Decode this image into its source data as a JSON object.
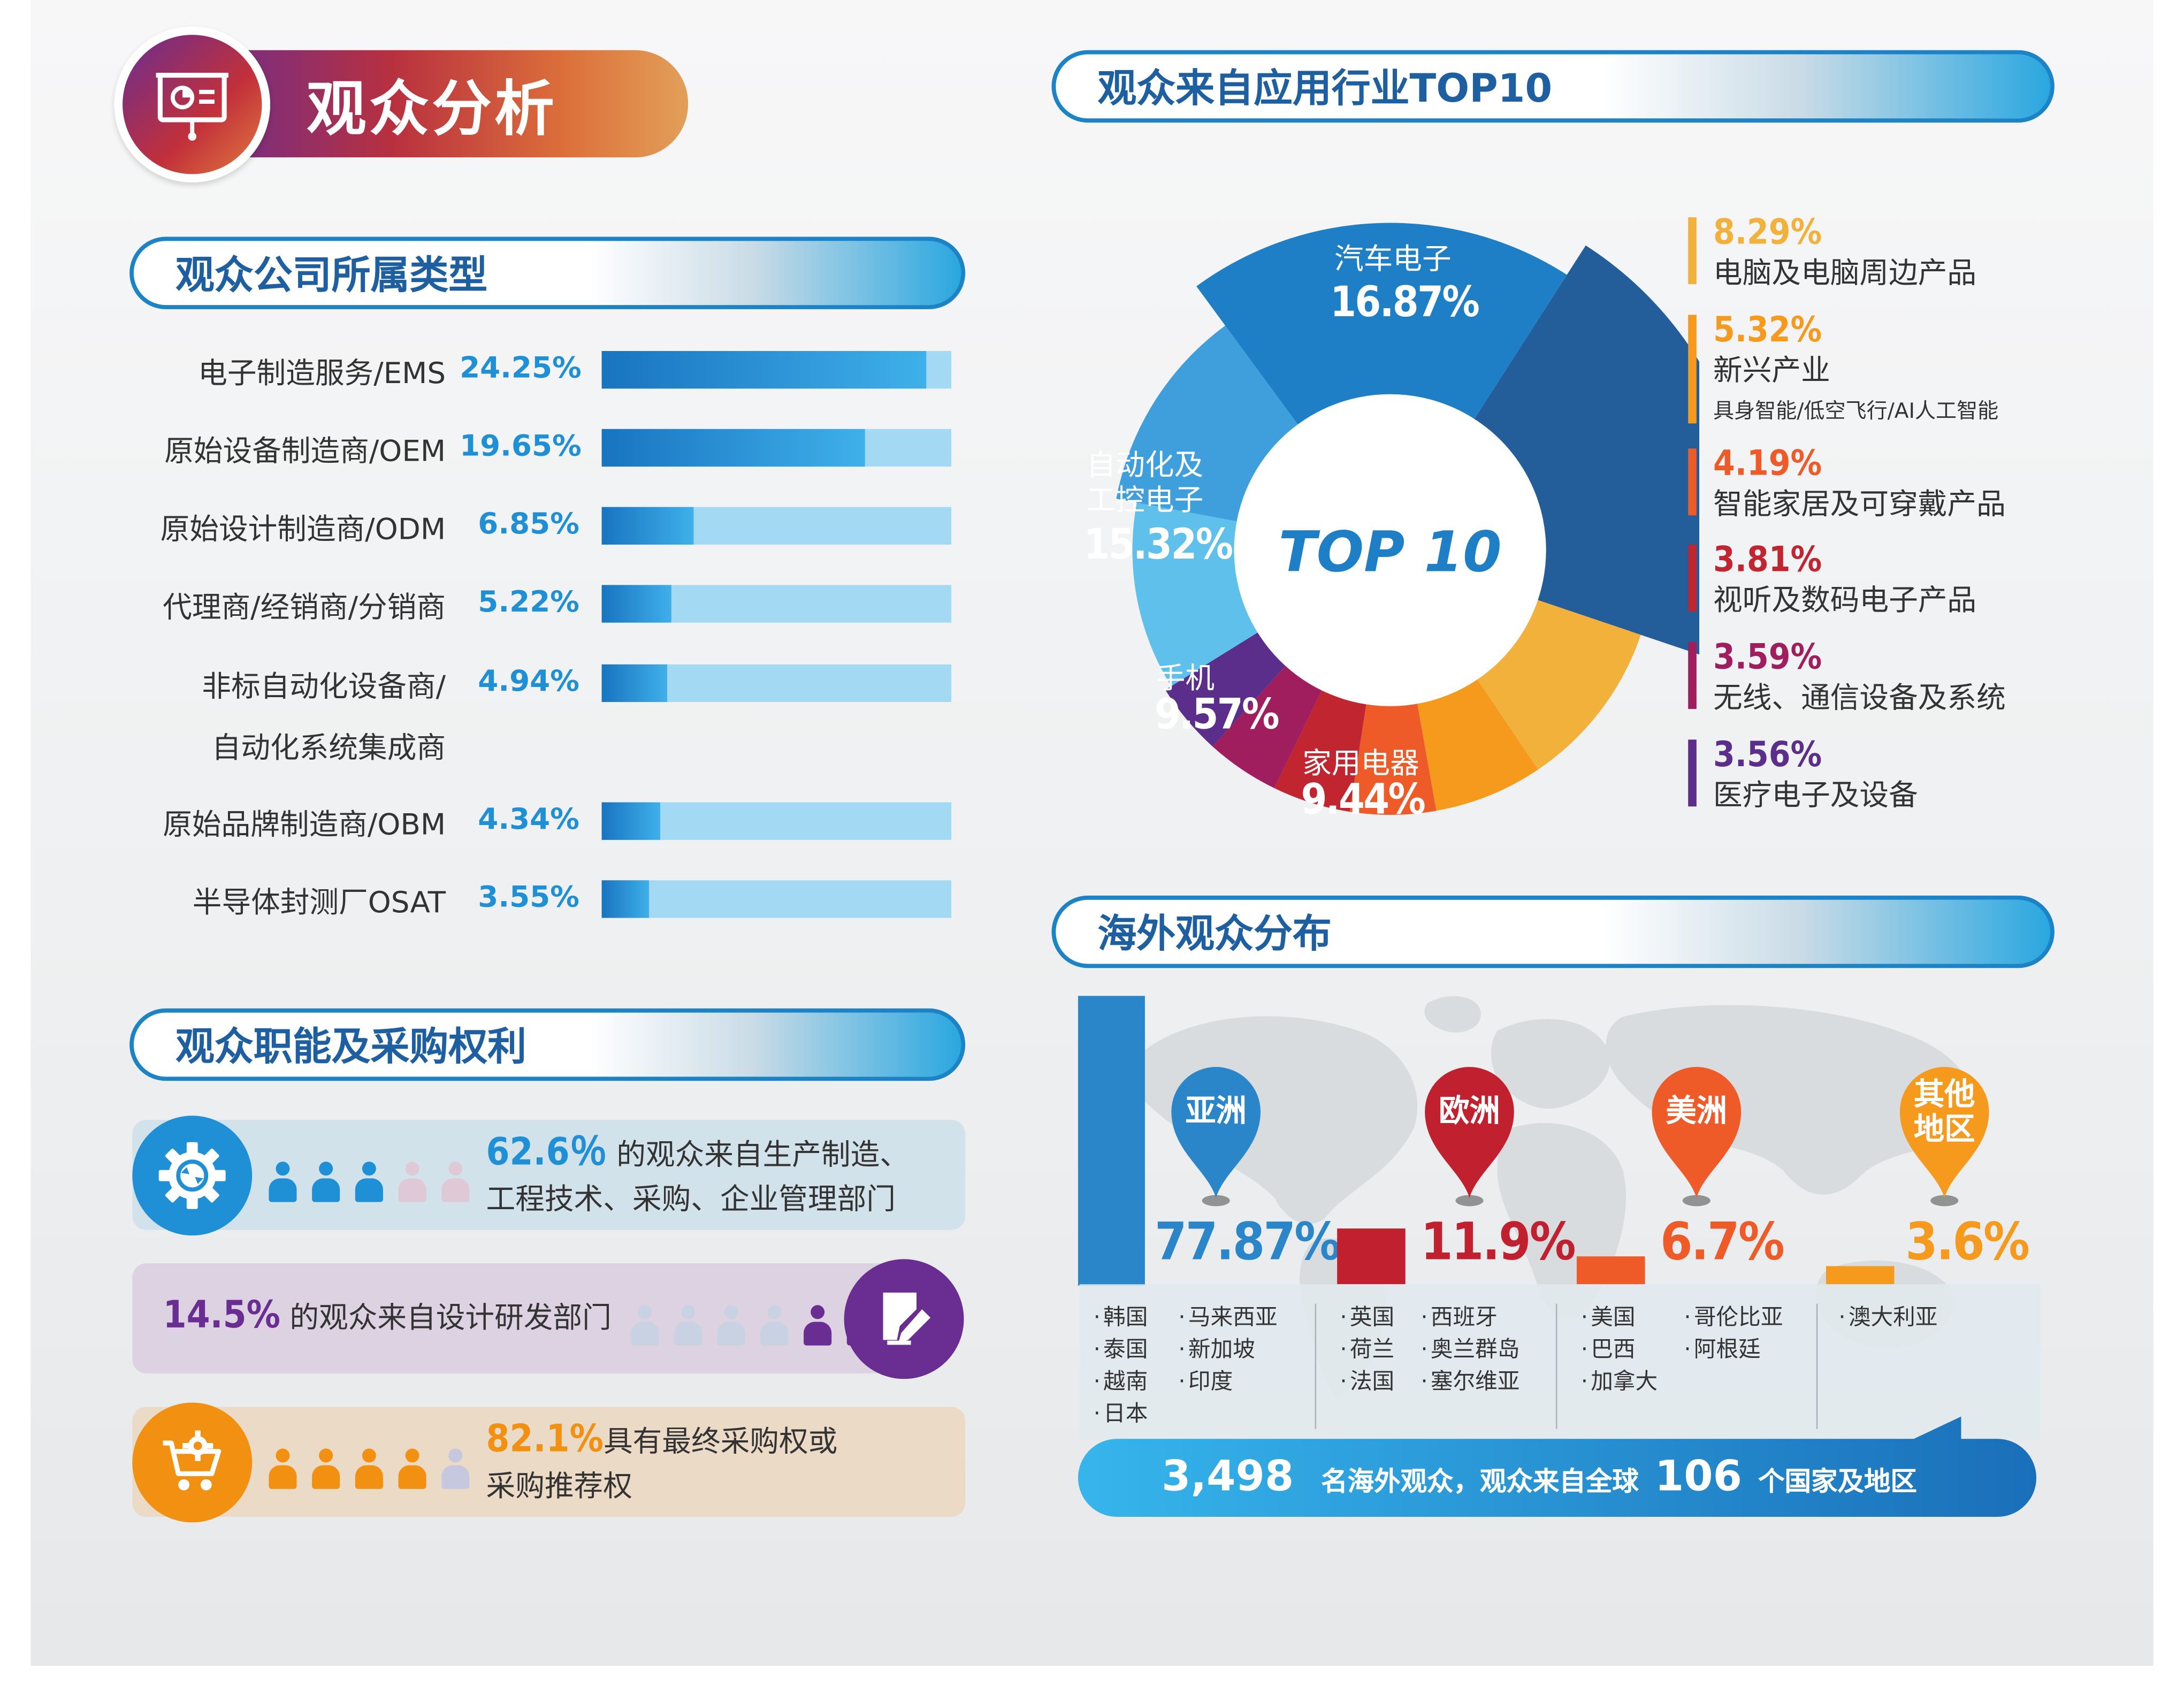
{
  "header": {
    "title": "观众分析",
    "icon": "presentation-chart-icon"
  },
  "company_type": {
    "title": "观众公司所属类型",
    "chart_data": {
      "type": "bar",
      "title": "观众公司所属类型",
      "categories": [
        "电子制造服务/EMS",
        "原始设备制造商/OEM",
        "原始设计制造商/ODM",
        "代理商/经销商/分销商",
        "非标自动化设备商/自动化系统集成商",
        "原始品牌制造商/OBM",
        "半导体封测厂OSAT"
      ],
      "labels": [
        "24.25%",
        "19.65%",
        "6.85%",
        "5.22%",
        "4.94%",
        "4.34%",
        "3.55%"
      ],
      "values": [
        24.25,
        19.65,
        6.85,
        5.22,
        4.94,
        4.34,
        3.55
      ],
      "ylim": [
        0,
        25
      ]
    },
    "label_lines": [
      [
        "电子制造服务/EMS"
      ],
      [
        "原始设备制造商/OEM"
      ],
      [
        "原始设计制造商/ODM"
      ],
      [
        "代理商/经销商/分销商"
      ],
      [
        "非标自动化设备商/",
        "自动化系统集成商"
      ],
      [
        "原始品牌制造商/OBM"
      ],
      [
        "半导体封测厂OSAT"
      ]
    ]
  },
  "function": {
    "title": "观众职能及采购权利",
    "rows": [
      {
        "pct": "62.6％",
        "line1": " 的观众来自生产制造、",
        "line2": "工程技术、采购、企业管理部门",
        "icon": "gear-refresh-icon",
        "color": "#1f8fd6",
        "filled": 3,
        "total": 5
      },
      {
        "pct": "14.5%",
        "line1": " 的观众来自设计研发部门",
        "icon": "document-edit-icon",
        "color": "#6a2d91",
        "filled": 2,
        "total": 6
      },
      {
        "pct": "82.1%",
        "line1": "具有最终采购权或",
        "line2": "采购推荐权",
        "icon": "shopping-cart-gear-icon",
        "color": "#f29111",
        "filled": 4,
        "total": 5
      }
    ]
  },
  "industry": {
    "title": "观众来自应用行业TOP10",
    "center": "TOP 10",
    "chart_data": {
      "type": "pie",
      "title": "观众来自应用行业TOP10",
      "categories": [
        "汽车电子",
        "电脑及电脑周边产品",
        "新兴产业",
        "智能家居及可穿戴产品",
        "视听及数码电子产品",
        "无线、通信设备及系统",
        "医疗电子及设备",
        "家用电器",
        "手机",
        "自动化及工控电子"
      ],
      "labels": [
        "16.87%",
        "8.29%",
        "5.32%",
        "4.19%",
        "3.81%",
        "3.59%",
        "3.56%",
        "9.44%",
        "9.57%",
        "15.32%"
      ],
      "values": [
        16.87,
        8.29,
        5.32,
        4.19,
        3.81,
        3.59,
        3.56,
        9.44,
        9.57,
        15.32
      ],
      "colors": [
        "#235d9a",
        "#f1b13b",
        "#f59a1d",
        "#ee5a28",
        "#c1252f",
        "#a01d5e",
        "#5b2e8c",
        "#5fc0ec",
        "#3e9fdc",
        "#1f7fc6"
      ],
      "legend_position": "right"
    },
    "inner_labels": {
      "auto": {
        "name": "汽车电子",
        "pct": "16.87%"
      },
      "ctrl": {
        "name1": "自动化及",
        "name2": "工控电子",
        "pct": "15.32%"
      },
      "phone": {
        "name": "手机",
        "pct": "9.57%"
      },
      "appl": {
        "name": "家用电器",
        "pct": "9.44%"
      }
    },
    "legend": [
      {
        "pct": "8.29%",
        "name": "电脑及电脑周边产品",
        "color": "#f1b13b"
      },
      {
        "pct": "5.32%",
        "name": "新兴产业",
        "sub": "具身智能/低空飞行/AI人工智能",
        "color": "#f59a1d"
      },
      {
        "pct": "4.19%",
        "name": "智能家居及可穿戴产品",
        "color": "#ee5a28"
      },
      {
        "pct": "3.81%",
        "name": "视听及数码电子产品",
        "color": "#c1252f"
      },
      {
        "pct": "3.59%",
        "name": "无线、通信设备及系统",
        "color": "#a01d5e"
      },
      {
        "pct": "3.56%",
        "name": "医疗电子及设备",
        "color": "#5b2e8c"
      }
    ]
  },
  "overseas": {
    "title": "海外观众分布",
    "chart_data": {
      "type": "bar",
      "title": "海外观众分布",
      "categories": [
        "亚洲",
        "欧洲",
        "美洲",
        "其他地区"
      ],
      "labels": [
        "77.87%",
        "11.9%",
        "6.7%",
        "3.6%"
      ],
      "values": [
        77.87,
        11.9,
        6.7,
        3.6
      ],
      "colors": [
        "#2b86c9",
        "#c1202e",
        "#ee5a28",
        "#f59a1d"
      ],
      "ylim": [
        0,
        80
      ]
    },
    "pins": [
      {
        "label1": "亚洲",
        "color": "#2b86c9"
      },
      {
        "label1": "欧洲",
        "color": "#c1202e"
      },
      {
        "label1": "美洲",
        "color": "#ee5a28"
      },
      {
        "label1": "其他",
        "label2": "地区",
        "color": "#f59a1d"
      }
    ],
    "countries": [
      [
        [
          "韩国",
          "泰国",
          "越南",
          "日本"
        ],
        [
          "马来西亚",
          "新加坡",
          "印度"
        ]
      ],
      [
        [
          "英国",
          "荷兰",
          "法国"
        ],
        [
          "西班牙",
          "奥兰群岛",
          "塞尔维亚"
        ]
      ],
      [
        [
          "美国",
          "巴西",
          "加拿大"
        ],
        [
          "哥伦比亚",
          "阿根廷"
        ]
      ],
      [
        [
          "澳大利亚"
        ]
      ]
    ],
    "summary": {
      "num1": "3,498",
      "text1": "名海外观众，观众来自全球",
      "num2": "106",
      "text2": "个国家及地区"
    }
  }
}
